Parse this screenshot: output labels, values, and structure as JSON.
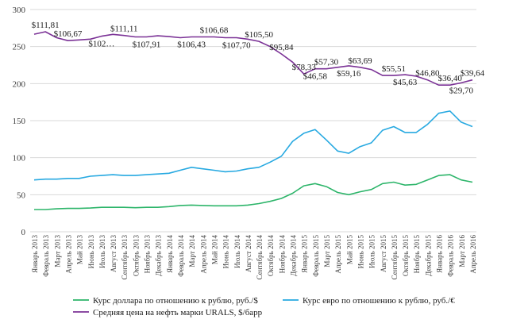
{
  "chart_data": {
    "type": "line",
    "title": "",
    "xlabel": "",
    "ylabel": "",
    "ylim": [
      0,
      300
    ],
    "yticks": [
      0,
      50,
      100,
      150,
      200,
      250,
      300
    ],
    "grid": true,
    "legend_position": "bottom",
    "categories": [
      "Январь 2013",
      "Февраль 2013",
      "Март 2013",
      "Апрель 2013",
      "Май 2013",
      "Июнь 2013",
      "Июль 2013",
      "Август 2013",
      "Сентябрь 2013",
      "Октябрь 2013",
      "Ноябрь 2013",
      "Декабрь 2013",
      "Январь 2014",
      "Февраль 2014",
      "Март 2014",
      "Апрель 2014",
      "Май 2014",
      "Июнь 2014",
      "Июль 2014",
      "Август 2014",
      "Сентябрь 2014",
      "Октябрь 2014",
      "Ноябрь 2014",
      "Декабрь 2014",
      "Январь 2015",
      "Февраль 2015",
      "Март 2015",
      "Апрель 2015",
      "Май 2015",
      "Июнь 2015",
      "Июль 2015",
      "Август 2015",
      "Сентябрь 2015",
      "Октябрь 2015",
      "Ноябрь 2015",
      "Декабрь 2015",
      "Январь 2016",
      "Февраль 2016",
      "Март 2016",
      "Апрель 2016"
    ],
    "series": [
      {
        "name": "Курс доллара по отношению к рублю, руб./$",
        "color": "#2db56a",
        "values": [
          30,
          30,
          31,
          31.5,
          31.5,
          32,
          33,
          33,
          33,
          32.5,
          33,
          33,
          34,
          35.5,
          36,
          35.5,
          35,
          35,
          35,
          36,
          38,
          41,
          45,
          52,
          62,
          65,
          61,
          53,
          50,
          54,
          57,
          65,
          67,
          63,
          64,
          70,
          76,
          77,
          70,
          67
        ]
      },
      {
        "name": "Курс евро по отношению к рублю, руб./€",
        "color": "#27a9e1",
        "values": [
          70,
          71,
          71,
          72,
          72,
          75,
          76,
          77,
          76,
          76,
          77,
          78,
          79,
          83,
          87,
          85,
          83,
          81,
          82,
          85,
          87,
          94,
          102,
          122,
          133,
          138,
          124,
          109,
          106,
          115,
          120,
          137,
          142,
          134,
          134,
          145,
          160,
          163,
          148,
          142
        ]
      },
      {
        "name": "Средняя цена на нефть марки URALS, $/барр",
        "color": "#7b3296",
        "values": [
          266.67,
          270,
          262,
          258,
          259,
          260,
          264,
          266.5,
          265,
          263,
          263,
          264.5,
          263.5,
          262,
          263,
          263,
          263,
          262,
          262,
          260,
          257,
          250,
          240,
          229,
          213,
          220,
          220,
          222,
          224,
          222,
          219,
          211,
          211,
          212,
          210,
          205,
          198,
          198,
          201,
          205
        ]
      }
    ],
    "annotations": [
      {
        "index": 1,
        "text": "$111,81",
        "pos": "above"
      },
      {
        "index": 3,
        "text": "$106,67",
        "pos": "above"
      },
      {
        "index": 6,
        "text": "$102…",
        "pos": "below"
      },
      {
        "index": 8,
        "text": "$111,11",
        "pos": "above"
      },
      {
        "index": 10,
        "text": "$107,91",
        "pos": "below"
      },
      {
        "index": 14,
        "text": "$106,43",
        "pos": "below"
      },
      {
        "index": 16,
        "text": "$106,68",
        "pos": "above"
      },
      {
        "index": 18,
        "text": "$107,70",
        "pos": "below"
      },
      {
        "index": 20,
        "text": "$105,50",
        "pos": "above"
      },
      {
        "index": 22,
        "text": "$95,84",
        "pos": "above"
      },
      {
        "index": 24,
        "text": "$78,33",
        "pos": "above"
      },
      {
        "index": 25,
        "text": "$46,58",
        "pos": "below"
      },
      {
        "index": 26,
        "text": "$57,30",
        "pos": "above"
      },
      {
        "index": 28,
        "text": "$59,16",
        "pos": "below"
      },
      {
        "index": 29,
        "text": "$63,69",
        "pos": "above"
      },
      {
        "index": 32,
        "text": "$55,51",
        "pos": "above"
      },
      {
        "index": 33,
        "text": "$45,63",
        "pos": "below"
      },
      {
        "index": 35,
        "text": "$46,80",
        "pos": "above"
      },
      {
        "index": 37,
        "text": "$36,40",
        "pos": "above"
      },
      {
        "index": 38,
        "text": "$29,70",
        "pos": "below"
      },
      {
        "index": 39,
        "text": "$39,64",
        "pos": "above"
      }
    ]
  }
}
